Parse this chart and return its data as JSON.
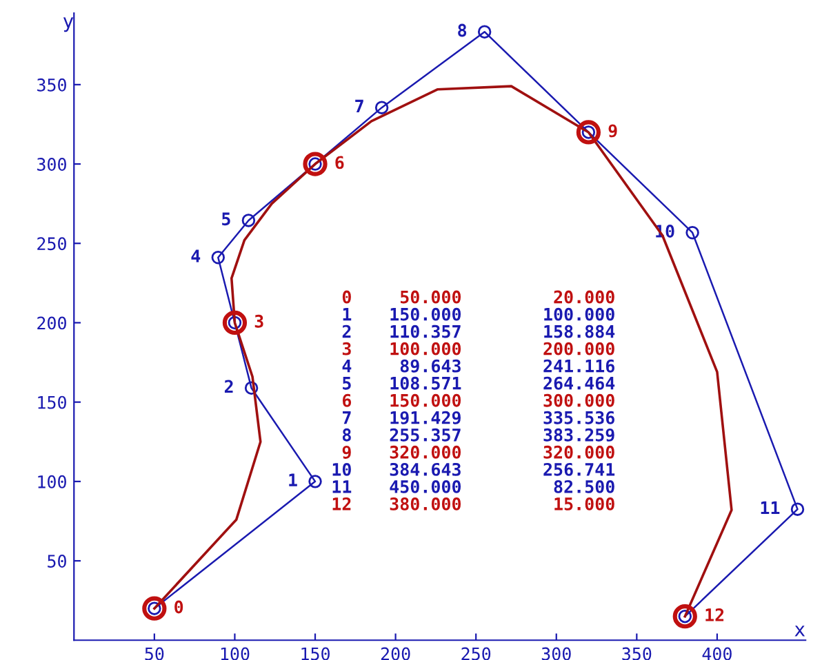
{
  "chart_data": {
    "type": "line",
    "xlabel": "x",
    "ylabel": "y",
    "xlim": [
      0,
      455
    ],
    "ylim": [
      0,
      395
    ],
    "xticks": [
      50,
      100,
      150,
      200,
      250,
      300,
      350,
      400
    ],
    "yticks": [
      50,
      100,
      150,
      200,
      250,
      300,
      350
    ],
    "grid": false,
    "series": [
      {
        "color": "#1a1ab0",
        "marker": "circle",
        "x": [
          50,
          150,
          110.357,
          100,
          89.643,
          108.571,
          150,
          191.429,
          255.357,
          320,
          384.643,
          450,
          380
        ],
        "values": [
          20,
          100,
          158.884,
          200,
          241.116,
          264.464,
          300,
          335.536,
          383.259,
          320,
          256.741,
          82.5,
          15
        ]
      },
      {
        "color": "#a01010",
        "marker": "none",
        "x": [
          50,
          101,
          116,
          111,
          100,
          98,
          106,
          123,
          150,
          185,
          226,
          272,
          320,
          366,
          400,
          409,
          380
        ],
        "values": [
          20,
          76,
          125,
          166,
          200,
          228,
          252,
          275,
          300,
          327,
          347,
          349,
          320,
          255,
          169,
          82,
          15
        ]
      },
      {
        "type": "scatter",
        "color": "#c01010",
        "marker": "circle",
        "x": [
          50,
          100,
          150,
          320,
          380
        ],
        "values": [
          20,
          200,
          300,
          320,
          15
        ]
      }
    ],
    "annotations": [
      {
        "text": "0",
        "x": 50,
        "y": 20
      },
      {
        "text": "1",
        "x": 150,
        "y": 100
      },
      {
        "text": "2",
        "x": 110.357,
        "y": 158.884
      },
      {
        "text": "3",
        "x": 100,
        "y": 200
      },
      {
        "text": "4",
        "x": 89.643,
        "y": 241.116
      },
      {
        "text": "5",
        "x": 108.571,
        "y": 264.464
      },
      {
        "text": "6",
        "x": 150,
        "y": 300
      },
      {
        "text": "7",
        "x": 191.429,
        "y": 335.536
      },
      {
        "text": "8",
        "x": 255.357,
        "y": 383.259
      },
      {
        "text": "9",
        "x": 320,
        "y": 320
      },
      {
        "text": "10",
        "x": 384.643,
        "y": 256.741
      },
      {
        "text": "11",
        "x": 450,
        "y": 82.5
      },
      {
        "text": "12",
        "x": 380,
        "y": 15
      },
      "0   50.000   20.000",
      "1  150.000  100.000",
      "2  110.357  158.884",
      "3  100.000  200.000",
      "4   89.643  241.116",
      "5  108.571  264.464",
      "6  150.000  300.000",
      "7  191.429  335.536",
      "8  255.357  383.259",
      "9  320.000  320.000",
      "10  384.643  256.741",
      "11  450.000   82.500",
      "12  380.000   15.000"
    ]
  }
}
